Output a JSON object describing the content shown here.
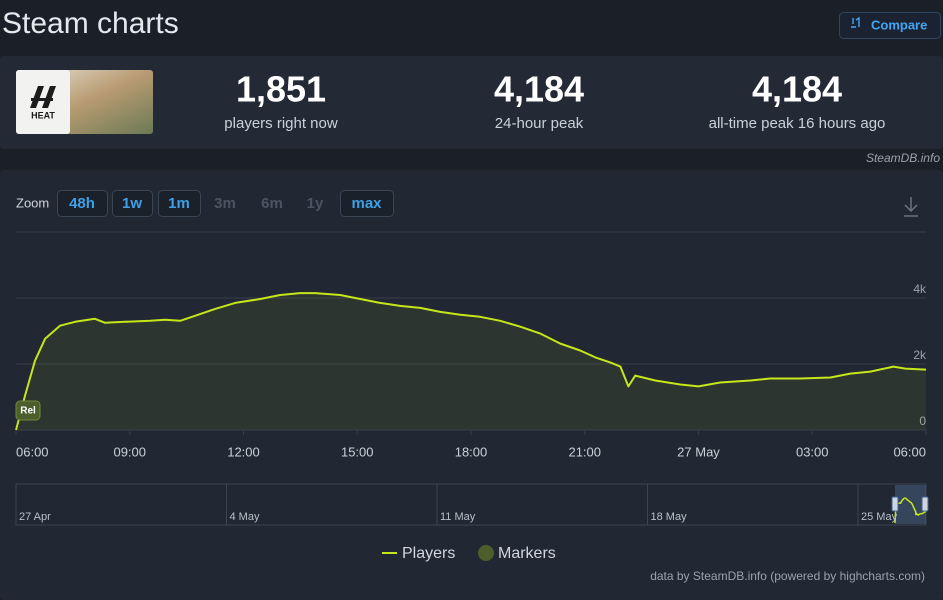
{
  "header": {
    "title": "Steam charts",
    "compare_button": "Compare"
  },
  "stats": {
    "game_logo_text": "HEAT",
    "items": [
      {
        "value": "1,851",
        "label": "players right now"
      },
      {
        "value": "4,184",
        "label": "24-hour peak"
      },
      {
        "value": "4,184",
        "label": "all-time peak 16 hours ago"
      }
    ],
    "source": "SteamDB.info"
  },
  "zoom": {
    "label": "Zoom",
    "buttons": [
      {
        "label": "48h",
        "enabled": true
      },
      {
        "label": "1w",
        "enabled": true
      },
      {
        "label": "1m",
        "enabled": true
      },
      {
        "label": "3m",
        "enabled": false
      },
      {
        "label": "6m",
        "enabled": false
      },
      {
        "label": "1y",
        "enabled": false
      },
      {
        "label": "max",
        "enabled": true
      }
    ]
  },
  "chart_data": {
    "type": "line",
    "x": [
      0,
      0.24,
      0.5,
      0.77,
      1.16,
      1.56,
      2.08,
      2.35,
      2.88,
      3.54,
      3.93,
      4.33,
      4.72,
      5.25,
      5.78,
      6.44,
      6.97,
      7.49,
      7.89,
      8.55,
      9.08,
      9.6,
      10.13,
      10.66,
      11.19,
      11.72,
      12.24,
      12.77,
      13.3,
      13.83,
      14.35,
      14.88,
      15.28,
      15.67,
      15.94,
      16.15,
      16.33,
      16.86,
      17.52,
      18,
      18.57,
      19.37,
      19.89,
      20.69,
      21.48,
      22,
      22.53,
      23.14,
      23.46,
      24
    ],
    "xlim": [
      0,
      24
    ],
    "xticks": [
      {
        "value": 0,
        "label": "06:00"
      },
      {
        "value": 3,
        "label": "09:00"
      },
      {
        "value": 6,
        "label": "12:00"
      },
      {
        "value": 9,
        "label": "15:00"
      },
      {
        "value": 12,
        "label": "18:00"
      },
      {
        "value": 15,
        "label": "21:00"
      },
      {
        "value": 18,
        "label": "27 May"
      },
      {
        "value": 21,
        "label": "03:00"
      },
      {
        "value": 24,
        "label": "06:00"
      }
    ],
    "ylim": [
      0,
      6000
    ],
    "yticks": [
      0,
      {
        "value": 2000,
        "label": "2k"
      },
      {
        "value": 4000,
        "label": "4k"
      }
    ],
    "grid": true,
    "series": [
      {
        "name": "Players",
        "color": "#c5e619",
        "values": [
          0,
          1050,
          2100,
          2770,
          3160,
          3280,
          3370,
          3250,
          3280,
          3310,
          3340,
          3310,
          3460,
          3670,
          3850,
          3970,
          4090,
          4150,
          4150,
          4090,
          3970,
          3850,
          3760,
          3700,
          3580,
          3490,
          3430,
          3310,
          3130,
          2920,
          2620,
          2410,
          2200,
          2050,
          1920,
          1320,
          1650,
          1500,
          1380,
          1320,
          1440,
          1500,
          1560,
          1560,
          1590,
          1710,
          1770,
          1920,
          1860,
          1830
        ]
      },
      {
        "name": "Markers",
        "color": "#4b5e2c",
        "x": [
          0
        ],
        "labels": [
          "Rel"
        ]
      }
    ],
    "navigator": {
      "categories": [
        "27 Apr",
        "4 May",
        "11 May",
        "18 May",
        "25 May"
      ]
    }
  },
  "footer": {
    "credit": "data by SteamDB.info (powered by highcharts.com)"
  }
}
